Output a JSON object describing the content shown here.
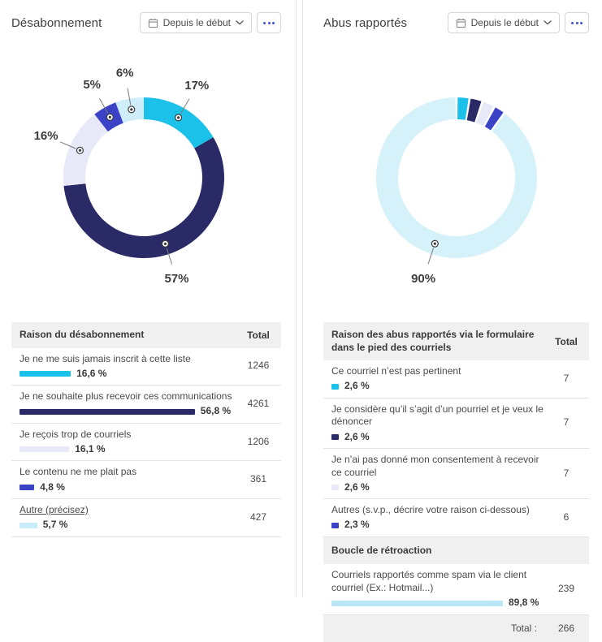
{
  "panels": [
    {
      "title": "Désabonnement",
      "period_button": {
        "label": "Depuis le début",
        "icon": "calendar-icon",
        "chevron": "chevron-down-icon"
      },
      "more_button": {
        "icon": "ellipsis-icon"
      },
      "chart_data": {
        "type": "pie",
        "donut": true,
        "title": "Désabonnement",
        "labels": [
          "Je ne me suis jamais inscrit à cette liste",
          "Je ne souhaite plus recevoir ces communications",
          "Je reçois trop de courriels",
          "Le contenu ne me plait pas",
          "Autre (précisez)"
        ],
        "values": [
          16.6,
          56.8,
          16.1,
          4.8,
          5.7
        ],
        "display_labels": [
          "17%",
          "57%",
          "16%",
          "5%",
          "6%"
        ],
        "colors": [
          "#1BC1E8",
          "#292A66",
          "#E7E9F8",
          "#3B42C5",
          "#CFEEF9"
        ],
        "start_angle": 0,
        "clockwise": true,
        "segment_gap_deg": 0,
        "legend": "none"
      },
      "table": {
        "header": "Raison du désabonnement",
        "total_header": "Total",
        "rows": [
          {
            "type": "row",
            "label": "Je ne me suis jamais inscrit à cette liste",
            "link": false,
            "pct_label": "16,6 %",
            "pct_value": 16.6,
            "color": "#1BC1E8",
            "total": "1246"
          },
          {
            "type": "row",
            "label": "Je ne souhaite plus recevoir ces communications",
            "link": false,
            "pct_label": "56,8 %",
            "pct_value": 56.8,
            "color": "#292A66",
            "total": "4261"
          },
          {
            "type": "row",
            "label": "Je reçois trop de courriels",
            "link": false,
            "pct_label": "16,1 %",
            "pct_value": 16.1,
            "color": "#E7E9F8",
            "total": "1206"
          },
          {
            "type": "row",
            "label": "Le contenu ne me plait pas",
            "link": false,
            "pct_label": "4,8 %",
            "pct_value": 4.8,
            "color": "#3B42C5",
            "total": "361"
          },
          {
            "type": "row",
            "label": "Autre (précisez)",
            "link": true,
            "pct_label": "5,7 %",
            "pct_value": 5.7,
            "color": "#C9EDF8",
            "total": "427"
          }
        ]
      }
    },
    {
      "title": "Abus rapportés",
      "period_button": {
        "label": "Depuis le début",
        "icon": "calendar-icon",
        "chevron": "chevron-down-icon"
      },
      "more_button": {
        "icon": "ellipsis-icon"
      },
      "chart_data": {
        "type": "pie",
        "donut": true,
        "title": "Abus rapportés",
        "labels": [
          "Ce courriel n’est pas pertinent",
          "Je considère qu’il s’agit d’un pourriel et je veux le dénoncer",
          "Je n’ai pas donné mon consentement à recevoir ce courriel",
          "Autres (s.v.p., décrire votre raison ci-dessous)",
          "Courriels rapportés comme spam via le client courriel (Ex.: Hotmail...)"
        ],
        "values": [
          2.6,
          2.6,
          2.6,
          2.3,
          89.8
        ],
        "display_labels": [
          "",
          "",
          "",
          "",
          "90%"
        ],
        "colors": [
          "#1BC1E8",
          "#292A66",
          "#E7E9F8",
          "#3B42C5",
          "#D5F1FA"
        ],
        "start_angle": 0,
        "clockwise": true,
        "segment_gap_deg": 1.6,
        "legend": "none"
      },
      "table": {
        "header": "Raison des abus rapportés via le formulaire dans le pied des courriels",
        "total_header": "Total",
        "rows": [
          {
            "type": "row",
            "label": "Ce courriel n’est pas pertinent",
            "link": false,
            "pct_label": "2,6 %",
            "pct_value": 2.6,
            "color": "#1BC1E8",
            "total": "7"
          },
          {
            "type": "row",
            "label": "Je considère qu’il s’agit d’un pourriel et je veux le dénoncer",
            "link": false,
            "pct_label": "2,6 %",
            "pct_value": 2.6,
            "color": "#292A66",
            "total": "7"
          },
          {
            "type": "row",
            "label": "Je n’ai pas donné mon consentement à recevoir ce courriel",
            "link": false,
            "pct_label": "2,6 %",
            "pct_value": 2.6,
            "color": "#E7E9F8",
            "total": "7"
          },
          {
            "type": "row",
            "label": "Autres (s.v.p., décrire votre raison ci-dessous)",
            "link": false,
            "pct_label": "2,3 %",
            "pct_value": 2.3,
            "color": "#3B42C5",
            "total": "6"
          },
          {
            "type": "section",
            "label": "Boucle de rétroaction"
          },
          {
            "type": "row",
            "label": "Courriels rapportés comme spam via le client courriel (Ex.: Hotmail...)",
            "link": false,
            "pct_label": "89,8 %",
            "pct_value": 89.8,
            "color": "#B9E7F5",
            "total": "239"
          },
          {
            "type": "footer",
            "label": "Total :",
            "total": "266"
          }
        ]
      }
    }
  ]
}
